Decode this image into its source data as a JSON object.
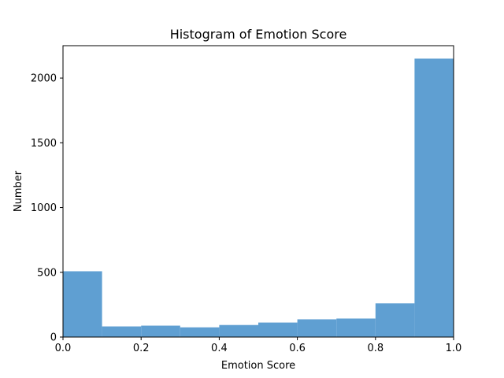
{
  "chart_data": {
    "type": "bar",
    "title": "Histogram of Emotion Score",
    "xlabel": "Emotion Score",
    "ylabel": "Number",
    "bin_edges": [
      0.0,
      0.1,
      0.2,
      0.3,
      0.4,
      0.5,
      0.6,
      0.7,
      0.8,
      0.9,
      1.0
    ],
    "values": [
      508,
      82,
      88,
      75,
      93,
      112,
      137,
      143,
      260,
      2150
    ],
    "xlim": [
      0.0,
      1.0
    ],
    "ylim": [
      0,
      2250
    ],
    "x_ticks": [
      0.0,
      0.2,
      0.4,
      0.6,
      0.8,
      1.0
    ],
    "x_tick_labels": [
      "0.0",
      "0.2",
      "0.4",
      "0.6",
      "0.8",
      "1.0"
    ],
    "y_ticks": [
      0,
      500,
      1000,
      1500,
      2000
    ],
    "y_tick_labels": [
      "0",
      "500",
      "1000",
      "1500",
      "2000"
    ],
    "grid": false,
    "bar_color": "#5f9fd2",
    "axis_color": "#000000"
  }
}
